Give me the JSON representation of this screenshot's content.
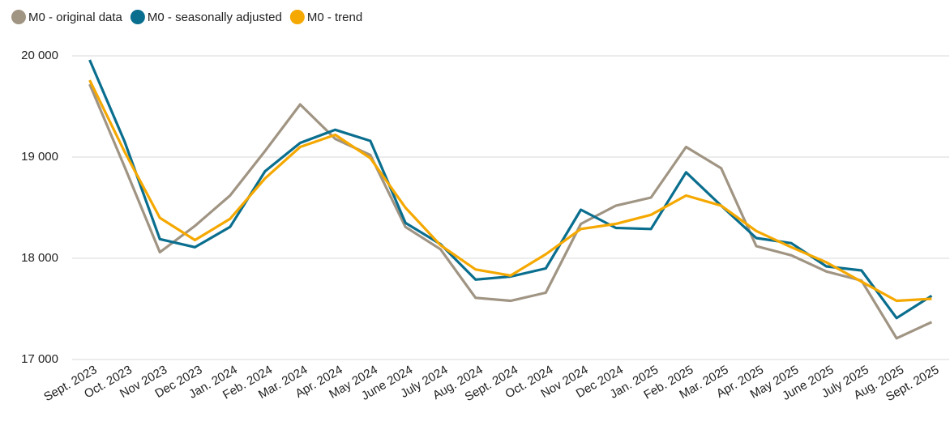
{
  "chart_data": {
    "type": "line",
    "categories": [
      "Sept. 2023",
      "Oct. 2023",
      "Nov 2023",
      "Dec 2023",
      "Jan. 2024",
      "Feb. 2024",
      "Mar. 2024",
      "Apr. 2024",
      "May 2024",
      "June 2024",
      "July 2024",
      "Aug. 2024",
      "Sept. 2024",
      "Oct. 2024",
      "Nov 2024",
      "Dec 2024",
      "Jan. 2025",
      "Feb. 2025",
      "Mar. 2025",
      "Apr. 2025",
      "May 2025",
      "June 2025",
      "July 2025",
      "Aug. 2025",
      "Sept. 2025"
    ],
    "series": [
      {
        "name": "M0 - original data",
        "color": "#a09483",
        "values": [
          19720,
          18900,
          18060,
          18320,
          18620,
          19060,
          19520,
          19180,
          19020,
          18310,
          18090,
          17610,
          17580,
          17660,
          18340,
          18520,
          18600,
          19100,
          18890,
          18120,
          18030,
          17870,
          17780,
          17210,
          17370
        ]
      },
      {
        "name": "M0 - seasonally adjusted",
        "color": "#0a6e8e",
        "values": [
          19960,
          19150,
          18190,
          18110,
          18310,
          18860,
          19140,
          19270,
          19160,
          18350,
          18140,
          17790,
          17820,
          17900,
          18480,
          18300,
          18290,
          18850,
          18520,
          18200,
          18150,
          17920,
          17880,
          17410,
          17630
        ]
      },
      {
        "name": "M0 - trend",
        "color": "#f5a800",
        "values": [
          19760,
          19050,
          18400,
          18180,
          18390,
          18790,
          19100,
          19220,
          18990,
          18500,
          18130,
          17890,
          17830,
          18040,
          18290,
          18340,
          18430,
          18620,
          18520,
          18270,
          18110,
          17960,
          17770,
          17580,
          17600
        ]
      }
    ],
    "ylim": [
      17000,
      20000
    ],
    "yticks": [
      {
        "value": 17000,
        "label": "17 000"
      },
      {
        "value": 18000,
        "label": "18 000"
      },
      {
        "value": 19000,
        "label": "19 000"
      },
      {
        "value": 20000,
        "label": "20 000"
      }
    ],
    "grid": true,
    "legend": "top"
  }
}
